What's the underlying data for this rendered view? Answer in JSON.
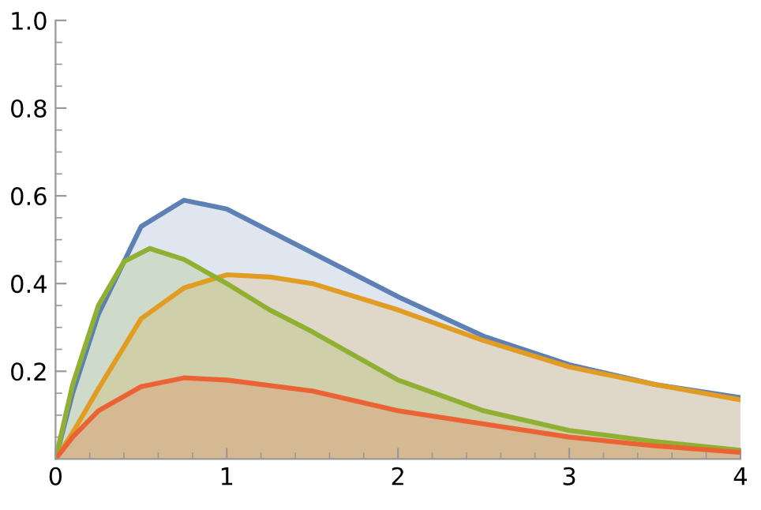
{
  "chart_data": {
    "type": "area",
    "xlim": [
      0,
      4
    ],
    "ylim": [
      0,
      1.0
    ],
    "xticks": [
      0,
      {
        "value": 0.2,
        "label": null
      },
      {
        "value": 0.4,
        "label": null
      },
      {
        "value": 0.6,
        "label": null
      },
      {
        "value": 0.8,
        "label": null
      },
      1,
      {
        "value": 1.2,
        "label": null
      },
      {
        "value": 1.4,
        "label": null
      },
      {
        "value": 1.6,
        "label": null
      },
      {
        "value": 1.8,
        "label": null
      },
      2,
      {
        "value": 2.2,
        "label": null
      },
      {
        "value": 2.4,
        "label": null
      },
      {
        "value": 2.6,
        "label": null
      },
      {
        "value": 2.8,
        "label": null
      },
      3,
      {
        "value": 3.2,
        "label": null
      },
      {
        "value": 3.4,
        "label": null
      },
      {
        "value": 3.6,
        "label": null
      },
      {
        "value": 3.8,
        "label": null
      },
      4
    ],
    "yticks": [
      {
        "value": 0.05,
        "label": null
      },
      {
        "value": 0.1,
        "label": null
      },
      {
        "value": 0.15,
        "label": null
      },
      0.2,
      {
        "value": 0.25,
        "label": null
      },
      {
        "value": 0.3,
        "label": null
      },
      {
        "value": 0.35,
        "label": null
      },
      0.4,
      {
        "value": 0.45,
        "label": null
      },
      {
        "value": 0.5,
        "label": null
      },
      {
        "value": 0.55,
        "label": null
      },
      0.6,
      {
        "value": 0.65,
        "label": null
      },
      {
        "value": 0.7,
        "label": null
      },
      {
        "value": 0.75,
        "label": null
      },
      0.8,
      {
        "value": 0.85,
        "label": null
      },
      {
        "value": 0.9,
        "label": null
      },
      {
        "value": 0.95,
        "label": null
      },
      {
        "value": 1.0,
        "label": "1.0"
      }
    ],
    "grid": false,
    "legend": false,
    "series": [
      {
        "color": "#5e81b5",
        "x": [
          0,
          0.1,
          0.25,
          0.5,
          0.75,
          1.0,
          1.25,
          1.5,
          2.0,
          2.5,
          3.0,
          3.5,
          4.0
        ],
        "values": [
          0,
          0.15,
          0.33,
          0.53,
          0.59,
          0.57,
          0.52,
          0.47,
          0.37,
          0.28,
          0.215,
          0.17,
          0.14
        ]
      },
      {
        "color": "#e19c24",
        "x": [
          0,
          0.1,
          0.25,
          0.5,
          0.75,
          1.0,
          1.25,
          1.5,
          2.0,
          2.5,
          3.0,
          3.5,
          4.0
        ],
        "values": [
          0,
          0.06,
          0.16,
          0.32,
          0.39,
          0.42,
          0.415,
          0.4,
          0.34,
          0.27,
          0.21,
          0.17,
          0.135
        ]
      },
      {
        "color": "#8fb032",
        "x": [
          0,
          0.1,
          0.25,
          0.4,
          0.55,
          0.75,
          1.0,
          1.25,
          1.5,
          2.0,
          2.5,
          3.0,
          3.5,
          4.0
        ],
        "values": [
          0,
          0.17,
          0.35,
          0.45,
          0.48,
          0.455,
          0.4,
          0.34,
          0.29,
          0.18,
          0.11,
          0.065,
          0.04,
          0.02
        ]
      },
      {
        "color": "#eb6235",
        "x": [
          0,
          0.1,
          0.25,
          0.5,
          0.75,
          1.0,
          1.5,
          2.0,
          2.5,
          3.0,
          3.5,
          4.0
        ],
        "values": [
          0,
          0.05,
          0.11,
          0.165,
          0.185,
          0.18,
          0.155,
          0.11,
          0.08,
          0.05,
          0.03,
          0.015
        ]
      }
    ]
  }
}
